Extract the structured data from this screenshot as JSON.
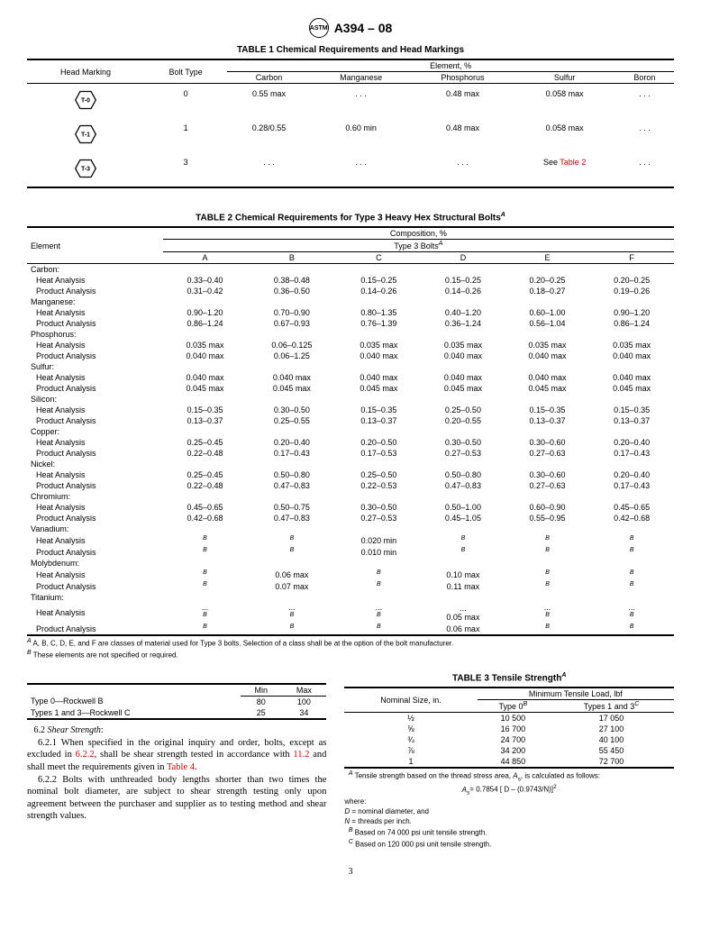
{
  "doc": {
    "designation": "A394 – 08",
    "page": "3"
  },
  "table1": {
    "title": "TABLE 1  Chemical Requirements and Head Markings",
    "head_marking": "Head Marking",
    "bolt_type": "Bolt Type",
    "element_pct": "Element, %",
    "cols": [
      "Carbon",
      "Manganese",
      "Phosphorus",
      "Sulfur",
      "Boron"
    ],
    "rows": [
      {
        "hex": "T-0",
        "type": "0",
        "vals": [
          "0.55 max",
          ". . .",
          "0.48 max",
          "0.058 max",
          ". . ."
        ]
      },
      {
        "hex": "T-1",
        "type": "1",
        "vals": [
          "0.28/0.55",
          "0.60 min",
          "0.48 max",
          "0.058 max",
          ". . ."
        ]
      },
      {
        "hex": "T-3",
        "type": "3",
        "vals": [
          ". . .",
          ". . .",
          ". . .",
          "See Table 2",
          ". . ."
        ]
      }
    ]
  },
  "table2": {
    "title": "TABLE 2   Chemical Requirements for Type 3 Heavy Hex Structural Bolts",
    "element": "Element",
    "composition": "Composition, %",
    "type3": "Type 3 Bolts",
    "cols": [
      "A",
      "B",
      "C",
      "D",
      "E",
      "F"
    ],
    "groups": [
      {
        "name": "Carbon:",
        "rows": [
          {
            "label": "Heat Analysis",
            "v": [
              "0.33–0.40",
              "0.38–0.48",
              "0.15–0.25",
              "0.15–0.25",
              "0.20–0.25",
              "0.20–0.25"
            ]
          },
          {
            "label": "Product Analysis",
            "v": [
              "0.31–0.42",
              "0.36–0.50",
              "0.14–0.26",
              "0.14–0.26",
              "0.18–0.27",
              "0.19–0.26"
            ]
          }
        ]
      },
      {
        "name": "Manganese:",
        "rows": [
          {
            "label": "Heat Analysis",
            "v": [
              "0.90–1.20",
              "0.70–0.90",
              "0.80–1.35",
              "0.40–1.20",
              "0.60–1.00",
              "0.90–1.20"
            ]
          },
          {
            "label": "Product Analysis",
            "v": [
              "0.86–1.24",
              "0.67–0.93",
              "0.76–1.39",
              "0.36–1.24",
              "0.56–1.04",
              "0.86–1.24"
            ]
          }
        ]
      },
      {
        "name": "Phosphorus:",
        "rows": [
          {
            "label": "Heat Analysis",
            "v": [
              "0.035 max",
              "0.06–0.125",
              "0.035 max",
              "0.035 max",
              "0.035 max",
              "0.035 max"
            ]
          },
          {
            "label": "Product Analysis",
            "v": [
              "0.040 max",
              "0.06–1.25",
              "0.040 max",
              "0.040 max",
              "0.040 max",
              "0.040 max"
            ]
          }
        ]
      },
      {
        "name": "Sulfur:",
        "rows": [
          {
            "label": "Heat Analysis",
            "v": [
              "0.040 max",
              "0.040 max",
              "0.040 max",
              "0.040 max",
              "0.040 max",
              "0.040 max"
            ]
          },
          {
            "label": "Product Analysis",
            "v": [
              "0.045 max",
              "0.045 max",
              "0.045 max",
              "0.045 max",
              "0.045 max",
              "0.045 max"
            ]
          }
        ]
      },
      {
        "name": "Silicon:",
        "rows": [
          {
            "label": "Heat Analysis",
            "v": [
              "0.15–0.35",
              "0.30–0.50",
              "0.15–0.35",
              "0.25–0.50",
              "0.15–0.35",
              "0.15–0.35"
            ]
          },
          {
            "label": "Product Analysis",
            "v": [
              "0.13–0.37",
              "0.25–0.55",
              "0.13–0.37",
              "0.20–0.55",
              "0.13–0.37",
              "0.13–0.37"
            ]
          }
        ]
      },
      {
        "name": "Copper:",
        "rows": [
          {
            "label": "Heat Analysis",
            "v": [
              "0.25–0.45",
              "0.20–0.40",
              "0.20–0.50",
              "0.30–0.50",
              "0.30–0.60",
              "0.20–0.40"
            ]
          },
          {
            "label": "Product Analysis",
            "v": [
              "0.22–0.48",
              "0.17–0.43",
              "0.17–0.53",
              "0.27–0.53",
              "0.27–0.63",
              "0.17–0.43"
            ]
          }
        ]
      },
      {
        "name": "Nickel:",
        "rows": [
          {
            "label": "Heat Analysis",
            "v": [
              "0.25–0.45",
              "0.50–0.80",
              "0.25–0.50",
              "0.50–0.80",
              "0.30–0.60",
              "0.20–0.40"
            ]
          },
          {
            "label": "Product Analysis",
            "v": [
              "0.22–0.48",
              "0.47–0.83",
              "0.22–0.53",
              "0.47–0.83",
              "0.27–0.63",
              "0.17–0.43"
            ]
          }
        ]
      },
      {
        "name": "Chromium:",
        "rows": [
          {
            "label": "Heat Analysis",
            "v": [
              "0.45–0.65",
              "0.50–0.75",
              "0.30–0.50",
              "0.50–1.00",
              "0.60–0.90",
              "0.45–0.65"
            ]
          },
          {
            "label": "Product Analysis",
            "v": [
              "0.42–0.68",
              "0.47–0.83",
              "0.27–0.53",
              "0.45–1.05",
              "0.55–0.95",
              "0.42–0.68"
            ]
          }
        ]
      },
      {
        "name": "Vanadium:",
        "rows": [
          {
            "label": "Heat Analysis",
            "v": [
              "B",
              "B",
              "0.020 min",
              "B",
              "B",
              "B"
            ]
          },
          {
            "label": "Product Analysis",
            "v": [
              "B",
              "B",
              "0.010 min",
              "B",
              "B",
              "B"
            ]
          }
        ]
      },
      {
        "name": "Molybdenum:",
        "rows": [
          {
            "label": "Heat Analysis",
            "v": [
              "B",
              "0.06 max",
              "B",
              "0.10 max",
              "B",
              "B"
            ]
          },
          {
            "label": "Product Analysis",
            "v": [
              "B",
              "0.07 max",
              "B",
              "0.11 max",
              "B",
              "B"
            ]
          }
        ]
      },
      {
        "name": "Titanium:",
        "rows": [
          {
            "label": "Heat Analysis",
            "v": [
              "...B",
              "...B",
              "...B",
              "...0.05 max",
              "...B",
              "...B"
            ]
          },
          {
            "label": "Product Analysis",
            "v": [
              "B",
              "B",
              "B",
              "0.06 max",
              "B",
              "B"
            ]
          }
        ]
      }
    ],
    "footnote_a": "A, B, C, D, E, and F are classes of material used for Type 3 bolts. Selection of a class shall be at the option of the bolt manufacturer.",
    "footnote_b": "These elements are not specified or required."
  },
  "hardness_table": {
    "cols": [
      "Min",
      "Max"
    ],
    "rows": [
      {
        "label": "Type 0—Rockwell B",
        "v": [
          "80",
          "100"
        ]
      },
      {
        "label": "Types 1 and 3—Rockwell C",
        "v": [
          "25",
          "34"
        ]
      }
    ]
  },
  "section62": {
    "heading": "6.2 ",
    "heading_italic": "Shear Strength",
    "p1_pre": "6.2.1 When specified in the original inquiry and order, bolts, except as excluded in ",
    "p1_link1": "6.2.2",
    "p1_mid": ", shall be shear strength tested in accordance with ",
    "p1_link2": "11.2",
    "p1_mid2": " and shall meet the requirements given in ",
    "p1_link3": "Table 4",
    "p1_end": ".",
    "p2": "6.2.2 Bolts with unthreaded body lengths shorter than two times the nominal bolt diameter, are subject to shear strength testing only upon agreement between the purchaser and supplier as to testing method and shear strength values."
  },
  "table3": {
    "title": "TABLE 3   Tensile Strength",
    "nominal": "Nominal Size, in.",
    "min_tensile": "Minimum Tensile Load, lbf",
    "cols": [
      "Type 0",
      "Types 1 and 3"
    ],
    "col_sup": [
      "B",
      "C"
    ],
    "rows": [
      {
        "size": "½",
        "v": [
          "10 500",
          "17 050"
        ]
      },
      {
        "size": "⅝",
        "v": [
          "16 700",
          "27 100"
        ]
      },
      {
        "size": "¾",
        "v": [
          "24 700",
          "40 100"
        ]
      },
      {
        "size": "⅞",
        "v": [
          "34 200",
          "55 450"
        ]
      },
      {
        "size": "1",
        "v": [
          "44 850",
          "72 700"
        ]
      }
    ],
    "footnote_a_pre": "Tensile strength based on the thread stress area, ",
    "footnote_a_sym": "A",
    "footnote_a_sub": "s",
    "footnote_a_post": ", is calculated as follows:",
    "formula": "= 0.7854 [ D – (0.9743/N)]",
    "where": "where:",
    "d_def": " = nominal diameter, and",
    "n_def": " = threads per inch.",
    "footnote_b": "Based on 74 000 psi unit tensile strength.",
    "footnote_c": "Based on 120 000 psi unit tensile strength."
  }
}
